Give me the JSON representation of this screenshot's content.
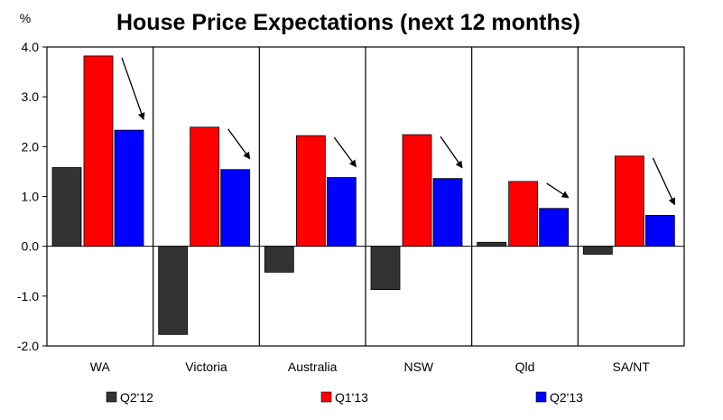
{
  "chart_data": {
    "type": "bar",
    "title": "House Price Expectations (next 12 months)",
    "ylabel": "%",
    "xlabel": "",
    "ylim": [
      -2.0,
      4.0
    ],
    "yticks": [
      "4.0",
      "3.0",
      "2.0",
      "1.0",
      "0.0",
      "-1.0",
      "-2.0"
    ],
    "ytick_values": [
      4,
      3,
      2,
      1,
      0,
      -1,
      -2
    ],
    "categories": [
      "WA",
      "Victoria",
      "Australia",
      "NSW",
      "Qld",
      "SA/NT"
    ],
    "series": [
      {
        "name": "Q2'12",
        "color": "#333333",
        "values": [
          1.58,
          -1.77,
          -0.52,
          -0.87,
          0.08,
          -0.16
        ]
      },
      {
        "name": "Q1'13",
        "color": "#ff0000",
        "values": [
          3.82,
          2.39,
          2.22,
          2.24,
          1.3,
          1.81
        ]
      },
      {
        "name": "Q2'13",
        "color": "#0000ff",
        "values": [
          2.33,
          1.54,
          1.38,
          1.36,
          0.76,
          0.62
        ]
      }
    ],
    "annotations": "arrow from Q1'13 bar to Q2'13 bar in each category, indicating decline",
    "legend_position": "bottom",
    "grid": false
  }
}
